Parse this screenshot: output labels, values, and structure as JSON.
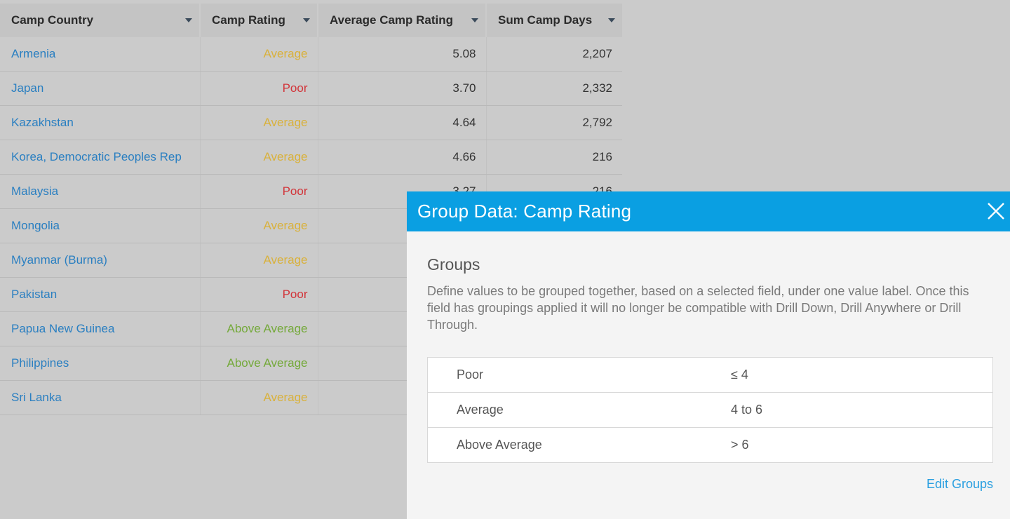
{
  "table": {
    "columns": [
      "Camp Country",
      "Camp Rating",
      "Average Camp Rating",
      "Sum Camp Days"
    ],
    "rows": [
      {
        "country": "Armenia",
        "rating": "Average",
        "avg": "5.08",
        "days": "2,207"
      },
      {
        "country": "Japan",
        "rating": "Poor",
        "avg": "3.70",
        "days": "2,332"
      },
      {
        "country": "Kazakhstan",
        "rating": "Average",
        "avg": "4.64",
        "days": "2,792"
      },
      {
        "country": "Korea, Democratic Peoples Rep",
        "rating": "Average",
        "avg": "4.66",
        "days": "216"
      },
      {
        "country": "Malaysia",
        "rating": "Poor",
        "avg": "3.27",
        "days": "216"
      },
      {
        "country": "Mongolia",
        "rating": "Average",
        "avg": "",
        "days": ""
      },
      {
        "country": "Myanmar (Burma)",
        "rating": "Average",
        "avg": "",
        "days": ""
      },
      {
        "country": "Pakistan",
        "rating": "Poor",
        "avg": "",
        "days": ""
      },
      {
        "country": "Papua New Guinea",
        "rating": "Above Average",
        "avg": "",
        "days": ""
      },
      {
        "country": "Philippines",
        "rating": "Above Average",
        "avg": "",
        "days": ""
      },
      {
        "country": "Sri Lanka",
        "rating": "Average",
        "avg": "",
        "days": ""
      }
    ],
    "rating_colors": {
      "Poor": "#d2353a",
      "Average": "#d9b13b",
      "Above Average": "#74a93a"
    }
  },
  "modal": {
    "title": "Group Data: Camp Rating",
    "close_icon": "close-icon",
    "section_title": "Groups",
    "description": "Define values to be grouped together, based on a selected field, under one value label. Once this field has groupings applied it will no longer be compatible with Drill Down, Drill Anywhere or Drill Through.",
    "groups": [
      {
        "name": "Poor",
        "range": "≤ 4"
      },
      {
        "name": "Average",
        "range": "4 to 6"
      },
      {
        "name": "Above Average",
        "range": "> 6"
      }
    ],
    "edit_label": "Edit Groups"
  }
}
